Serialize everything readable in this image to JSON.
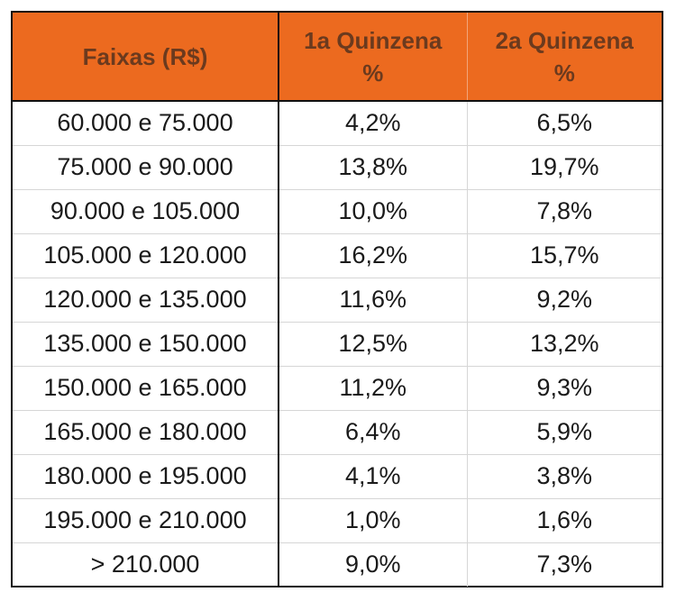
{
  "chart_data": {
    "type": "table",
    "columns": [
      {
        "lines": [
          "Faixas (R$)"
        ]
      },
      {
        "lines": [
          "1a Quinzena",
          "%"
        ]
      },
      {
        "lines": [
          "2a Quinzena",
          "%"
        ]
      }
    ],
    "rows": [
      {
        "faixa": "60.000 e 75.000",
        "q1": "4,2%",
        "q2": "6,5%"
      },
      {
        "faixa": "75.000 e 90.000",
        "q1": "13,8%",
        "q2": "19,7%"
      },
      {
        "faixa": "90.000 e 105.000",
        "q1": "10,0%",
        "q2": "7,8%"
      },
      {
        "faixa": "105.000 e 120.000",
        "q1": "16,2%",
        "q2": "15,7%"
      },
      {
        "faixa": "120.000 e 135.000",
        "q1": "11,6%",
        "q2": "9,2%"
      },
      {
        "faixa": "135.000 e 150.000",
        "q1": "12,5%",
        "q2": "13,2%"
      },
      {
        "faixa": "150.000 e 165.000",
        "q1": "11,2%",
        "q2": "9,3%"
      },
      {
        "faixa": "165.000 e 180.000",
        "q1": "6,4%",
        "q2": "5,9%"
      },
      {
        "faixa": "180.000 e 195.000",
        "q1": "4,1%",
        "q2": "3,8%"
      },
      {
        "faixa": "195.000 e 210.000",
        "q1": "1,0%",
        "q2": "1,6%"
      },
      {
        "faixa": "> 210.000",
        "q1": "9,0%",
        "q2": "7,3%"
      }
    ],
    "colors": {
      "header_background": "#ec6a1f",
      "header_text": "#6b3a1e",
      "border": "#111111"
    }
  }
}
